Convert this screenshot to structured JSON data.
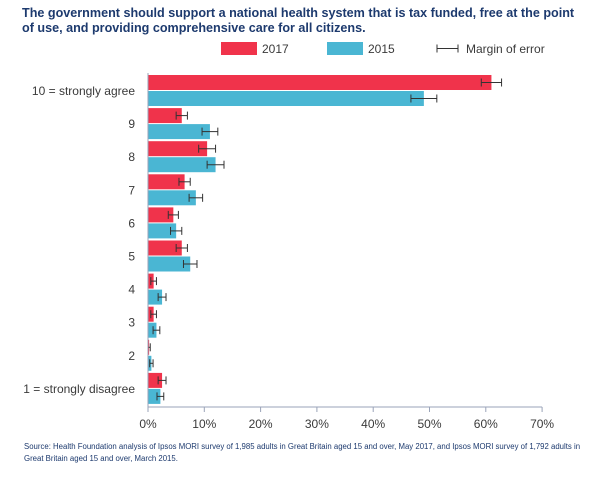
{
  "title": "The government should support a national health system that is tax funded, free at the point of use, and providing comprehensive care for all citizens.",
  "source": "Source: Health Foundation analysis of Ipsos MORI survey of 1,985 adults in Great Britain aged 15 and over, May 2017, and Ipsos MORI survey of 1,792 adults in Great Britain aged 15 and over, March 2015.",
  "colors": {
    "s2017": "#f0334b",
    "s2015": "#4ab6d3",
    "axis": "#9aa3b8",
    "text": "#3a3a3a",
    "errbar": "#333333"
  },
  "chart_data": {
    "type": "bar",
    "orientation": "horizontal",
    "title": "The government should support a national health system that is tax funded, free at the point of use, and providing comprehensive care for all citizens.",
    "categories": [
      "10 = strongly agree",
      "9",
      "8",
      "7",
      "6",
      "5",
      "4",
      "3",
      "2",
      "1 = strongly disagree"
    ],
    "series": [
      {
        "name": "2017",
        "values": [
          61,
          6,
          10.5,
          6.5,
          4.5,
          6,
          1,
          1,
          0.2,
          2.5
        ],
        "errors": [
          1.8,
          1.0,
          1.5,
          1.0,
          0.9,
          1.0,
          0.5,
          0.5,
          0.2,
          0.7
        ]
      },
      {
        "name": "2015",
        "values": [
          49,
          11,
          12,
          8.5,
          5,
          7.5,
          2.5,
          1.5,
          0.6,
          2.2
        ],
        "errors": [
          2.3,
          1.4,
          1.5,
          1.2,
          1.0,
          1.2,
          0.7,
          0.6,
          0.3,
          0.6
        ]
      }
    ],
    "error_legend": "Margin of error",
    "xlim": [
      0,
      70
    ],
    "xticks": [
      "0%",
      "10%",
      "20%",
      "30%",
      "40%",
      "50%",
      "60%",
      "70%"
    ],
    "xlabel": "",
    "ylabel": "",
    "legend": "top-right",
    "grid": false
  }
}
